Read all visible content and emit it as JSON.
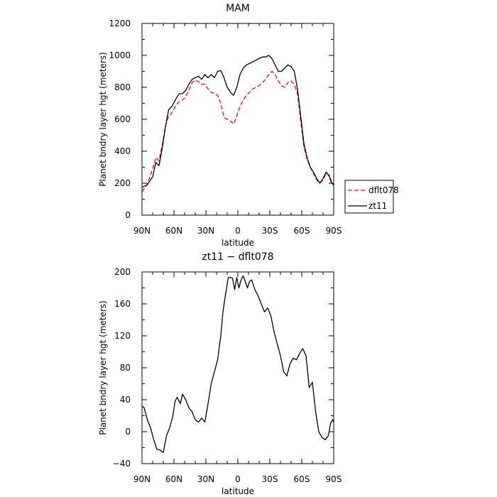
{
  "chart_data": [
    {
      "type": "line",
      "title": "MAM",
      "xlabel": "latitude",
      "ylabel": "Planet bndry layer hgt (meters)",
      "xlim": [
        90,
        -90
      ],
      "ylim": [
        0,
        1200
      ],
      "xticks": [
        90,
        60,
        30,
        0,
        -30,
        -60,
        -90
      ],
      "xtick_labels": [
        "90N",
        "60N",
        "30N",
        "0",
        "30S",
        "60S",
        "90S"
      ],
      "yticks": [
        0,
        200,
        400,
        600,
        800,
        1000,
        1200
      ],
      "ytick_labels": [
        "0",
        "200",
        "400",
        "600",
        "800",
        "1000",
        "1200"
      ],
      "legend": {
        "placement": "right",
        "entries": [
          "dflt078",
          "zt11"
        ]
      },
      "series": [
        {
          "name": "dflt078",
          "color": "#ff0000",
          "dash": true,
          "x": [
            90,
            85,
            80,
            77,
            74,
            71,
            68,
            65,
            62,
            58,
            55,
            52,
            49,
            46,
            43,
            40,
            37,
            34,
            31,
            28,
            25,
            22,
            19,
            16,
            13,
            10,
            7,
            4,
            1,
            -2,
            -5,
            -8,
            -11,
            -14,
            -17,
            -20,
            -23,
            -26,
            -29,
            -32,
            -35,
            -38,
            -41,
            -44,
            -47,
            -50,
            -53,
            -56,
            -59,
            -62,
            -65,
            -68,
            -71,
            -74,
            -77,
            -80,
            -83,
            -86,
            -88,
            -90
          ],
          "y": [
            145,
            195,
            290,
            360,
            340,
            440,
            560,
            620,
            640,
            690,
            710,
            720,
            740,
            780,
            830,
            845,
            835,
            820,
            820,
            790,
            770,
            760,
            750,
            700,
            610,
            600,
            590,
            570,
            620,
            680,
            720,
            750,
            770,
            790,
            800,
            810,
            830,
            850,
            880,
            900,
            880,
            840,
            810,
            800,
            830,
            840,
            820,
            760,
            590,
            430,
            350,
            300,
            260,
            220,
            200,
            220,
            265,
            250,
            210,
            185
          ]
        },
        {
          "name": "zt11",
          "color": "#000000",
          "dash": false,
          "x": [
            90,
            85,
            80,
            77,
            74,
            71,
            68,
            65,
            62,
            58,
            55,
            52,
            49,
            46,
            43,
            40,
            37,
            34,
            31,
            28,
            25,
            22,
            19,
            16,
            13,
            10,
            7,
            4,
            1,
            -2,
            -5,
            -8,
            -11,
            -14,
            -17,
            -20,
            -23,
            -26,
            -29,
            -32,
            -35,
            -38,
            -41,
            -44,
            -47,
            -50,
            -53,
            -56,
            -59,
            -62,
            -65,
            -68,
            -71,
            -74,
            -77,
            -80,
            -83,
            -86,
            -88,
            -90
          ],
          "y": [
            175,
            190,
            240,
            330,
            310,
            420,
            550,
            660,
            680,
            730,
            760,
            760,
            780,
            820,
            850,
            860,
            870,
            850,
            880,
            860,
            880,
            860,
            900,
            905,
            860,
            800,
            770,
            750,
            800,
            880,
            920,
            940,
            950,
            960,
            970,
            980,
            990,
            990,
            1000,
            980,
            940,
            900,
            900,
            920,
            940,
            930,
            900,
            790,
            620,
            450,
            360,
            300,
            270,
            230,
            200,
            230,
            270,
            240,
            200,
            190
          ]
        }
      ]
    },
    {
      "type": "line",
      "title": "zt11 − dflt078",
      "xlabel": "latitude",
      "ylabel": "Planet bndry layer hgt (meters)",
      "xlim": [
        90,
        -90
      ],
      "ylim": [
        -40,
        200
      ],
      "xticks": [
        90,
        60,
        30,
        0,
        -30,
        -60,
        -90
      ],
      "xtick_labels": [
        "90N",
        "60N",
        "30N",
        "0",
        "30S",
        "60S",
        "90S"
      ],
      "yticks": [
        -40,
        0,
        40,
        80,
        120,
        160,
        200
      ],
      "ytick_labels": [
        "−40",
        "0",
        "40",
        "80",
        "120",
        "160",
        "200"
      ],
      "series": [
        {
          "color": "#000000",
          "dash": false,
          "x": [
            90,
            88,
            85,
            82,
            79,
            76,
            73,
            70,
            67,
            64,
            61,
            59,
            57,
            54,
            52,
            49,
            46,
            43,
            40,
            37,
            34,
            31,
            28,
            25,
            22,
            19,
            16,
            14,
            12,
            9,
            7,
            5,
            3,
            1,
            -1,
            -3,
            -5,
            -7,
            -9,
            -11,
            -13,
            -16,
            -19,
            -22,
            -25,
            -28,
            -31,
            -34,
            -37,
            -40,
            -43,
            -46,
            -49,
            -52,
            -55,
            -58,
            -61,
            -64,
            -67,
            -70,
            -73,
            -76,
            -79,
            -82,
            -85,
            -87,
            -89,
            -90
          ],
          "y": [
            32,
            30,
            15,
            5,
            -10,
            -22,
            -23,
            -26,
            -5,
            5,
            20,
            38,
            43,
            35,
            47,
            40,
            30,
            25,
            15,
            12,
            17,
            12,
            35,
            60,
            75,
            90,
            120,
            150,
            168,
            193,
            193,
            192,
            178,
            193,
            180,
            190,
            195,
            188,
            180,
            188,
            190,
            178,
            170,
            160,
            150,
            155,
            145,
            125,
            110,
            95,
            75,
            70,
            85,
            92,
            90,
            98,
            104,
            95,
            55,
            62,
            25,
            0,
            -7,
            -10,
            -5,
            10,
            15,
            12
          ]
        }
      ]
    }
  ]
}
